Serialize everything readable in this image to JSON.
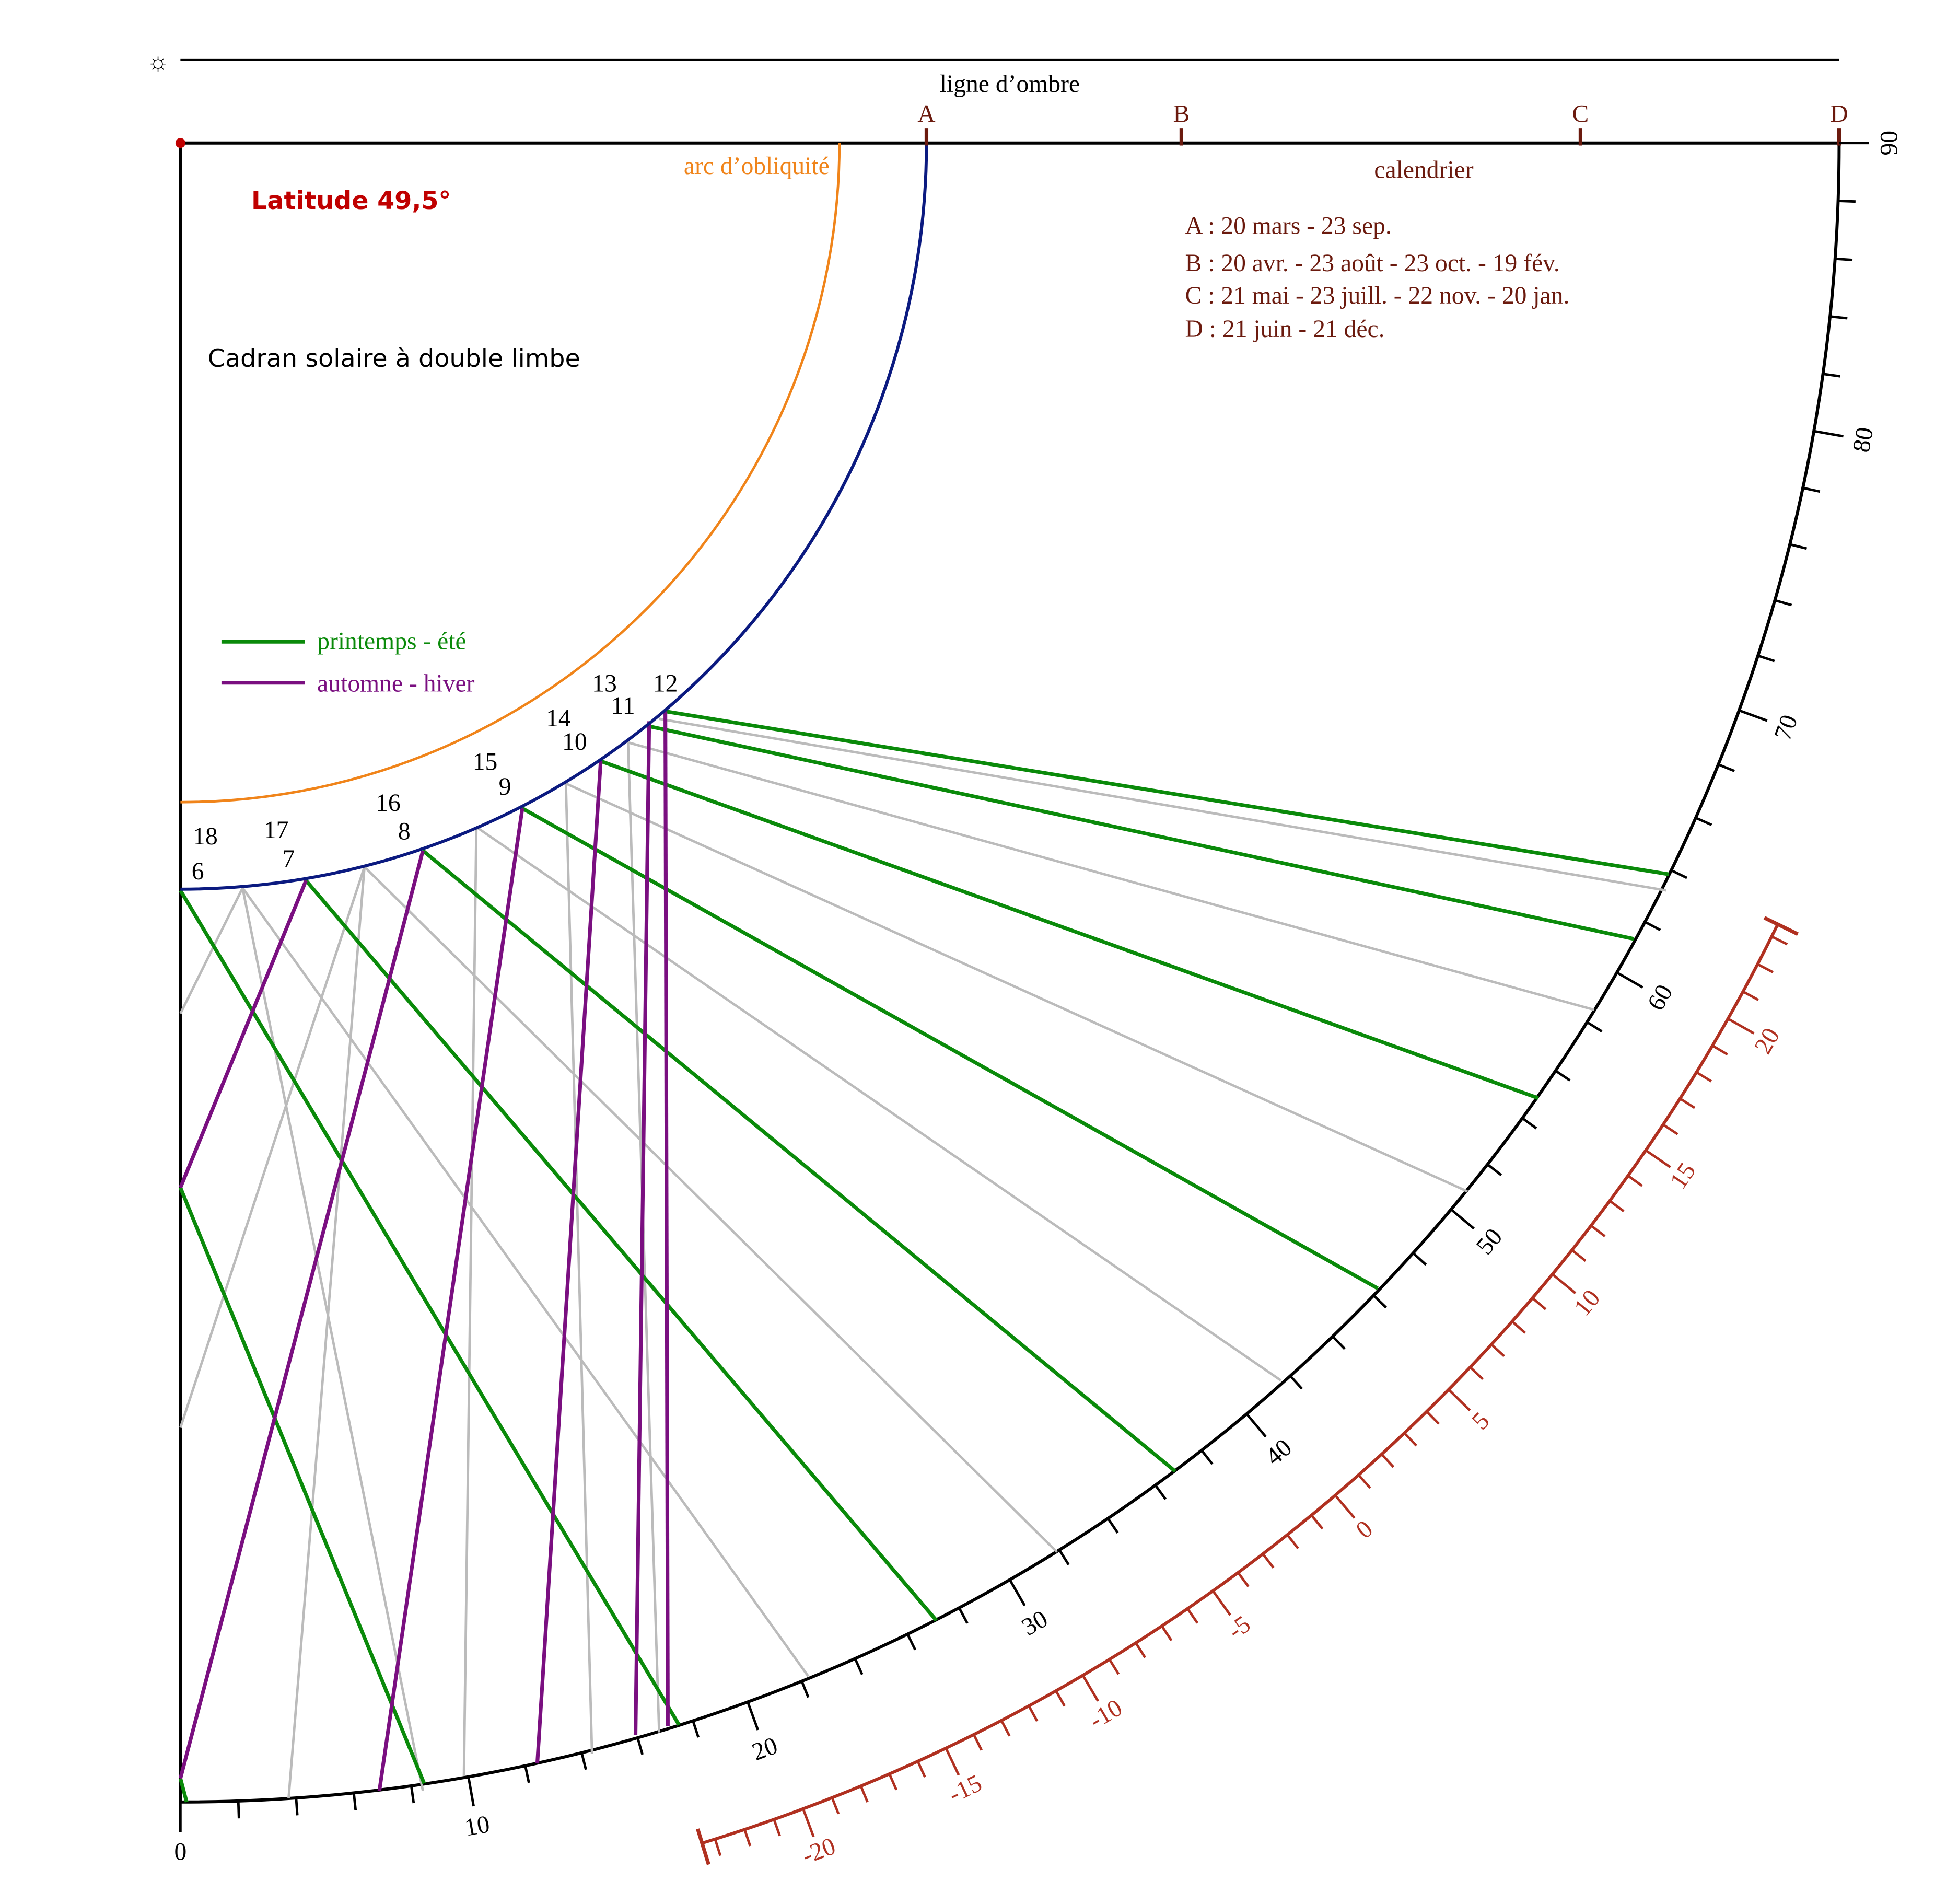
{
  "sun": "☼",
  "title": "Cadran solaire à double limbe",
  "latitude": "Latitude 49,5°",
  "shadow_line": "ligne d’ombre",
  "obliquity_arc": "arc d’obliquité",
  "calendar": {
    "title": "calendrier",
    "markers": [
      "A",
      "B",
      "C",
      "D"
    ],
    "entries": [
      "A : 20 mars - 23 sep.",
      "B : 20 avr. - 23 août - 23 oct. - 19 fév.",
      "C : 21 mai - 23 juill. - 22 nov. - 20 jan.",
      "D : 21 juin - 21 déc."
    ]
  },
  "legend": [
    "printemps - été",
    "automne - hiver"
  ],
  "hours": {
    "afternoon": [
      "12",
      "13",
      "14",
      "15",
      "16",
      "17",
      "18"
    ],
    "morning": [
      "11",
      "10",
      "9",
      "8",
      "7",
      "6"
    ]
  },
  "outer_scale": [
    0,
    10,
    20,
    30,
    40,
    50,
    60,
    70,
    80,
    90
  ],
  "declination_scale": [
    -20,
    -15,
    -10,
    -5,
    0,
    5,
    10,
    15,
    20
  ]
}
